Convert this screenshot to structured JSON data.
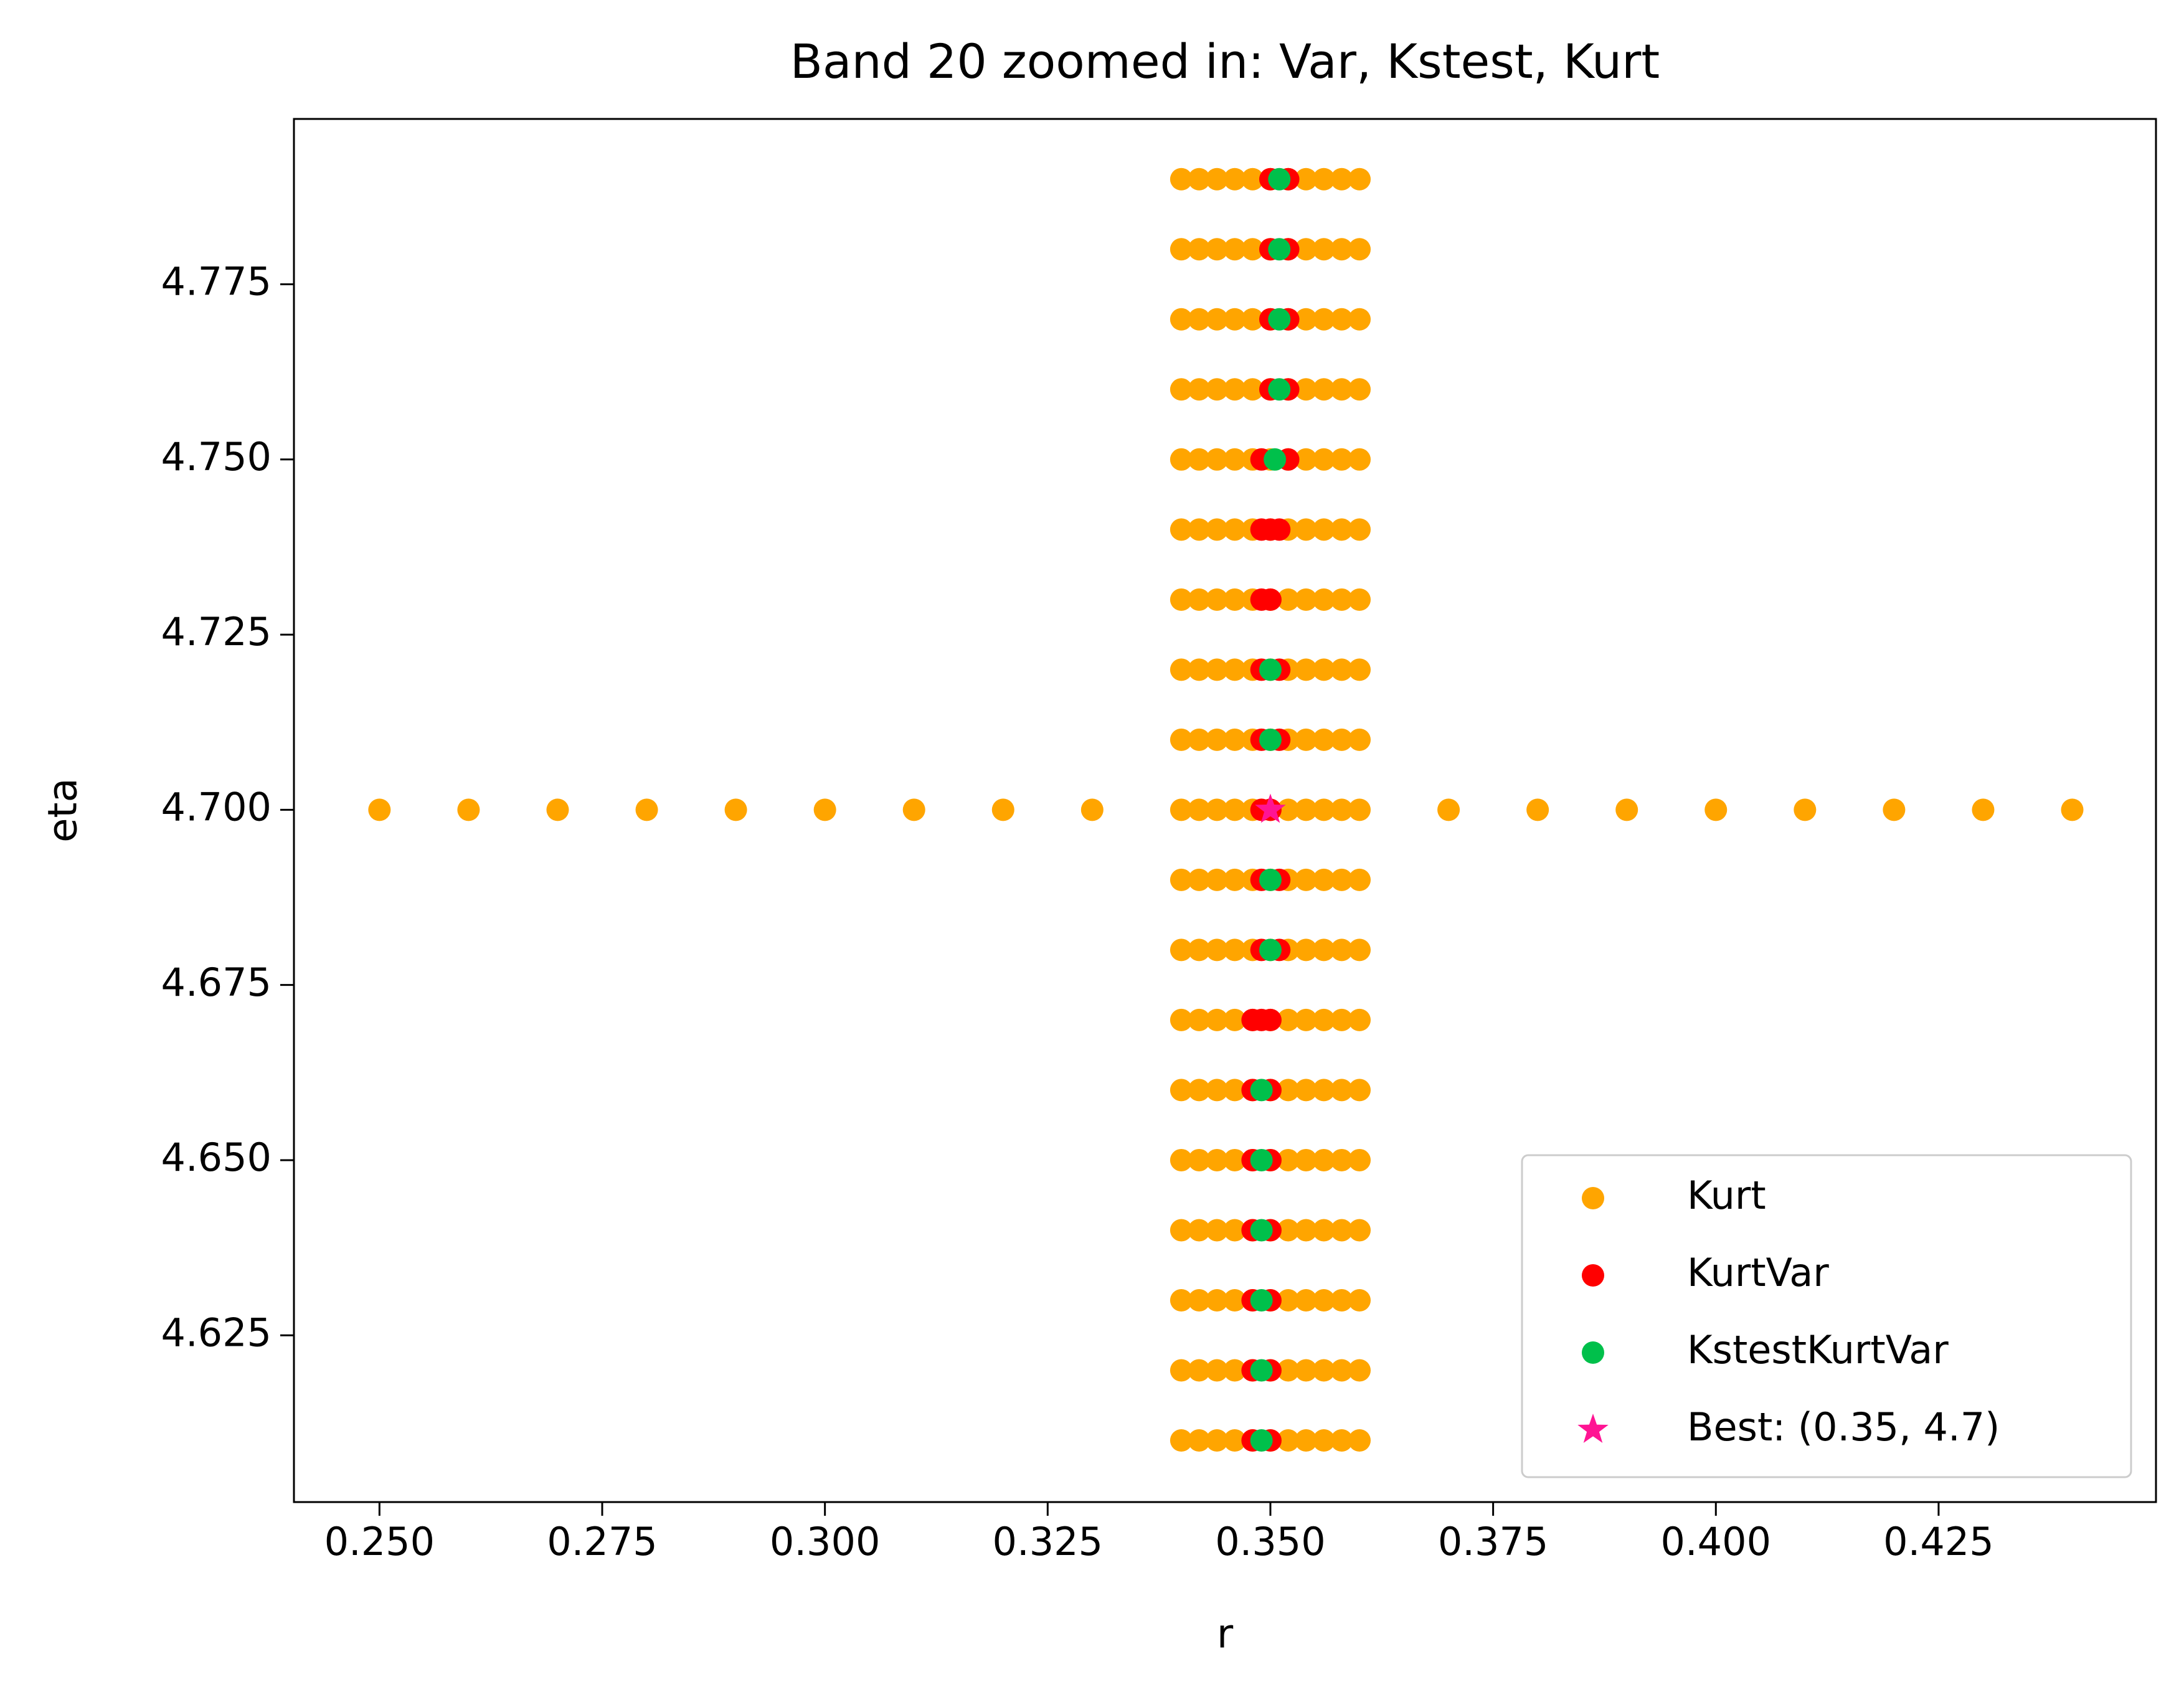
{
  "chart_data": {
    "type": "scatter",
    "title": "Band 20 zoomed in: Var, Kstest, Kurt",
    "x_label": "r",
    "y_label": "eta",
    "xlim": [
      0.2404,
      0.4494
    ],
    "ylim": [
      4.6012,
      4.7986
    ],
    "xticks": [
      {
        "value": 0.25,
        "label": "0.250"
      },
      {
        "value": 0.275,
        "label": "0.275"
      },
      {
        "value": 0.3,
        "label": "0.300"
      },
      {
        "value": 0.325,
        "label": "0.325"
      },
      {
        "value": 0.35,
        "label": "0.350"
      },
      {
        "value": 0.375,
        "label": "0.375"
      },
      {
        "value": 0.4,
        "label": "0.400"
      },
      {
        "value": 0.425,
        "label": "0.425"
      }
    ],
    "yticks": [
      {
        "value": 4.625,
        "label": "4.625"
      },
      {
        "value": 4.65,
        "label": "4.650"
      },
      {
        "value": 4.675,
        "label": "4.675"
      },
      {
        "value": 4.7,
        "label": "4.700"
      },
      {
        "value": 4.725,
        "label": "4.725"
      },
      {
        "value": 4.75,
        "label": "4.750"
      },
      {
        "value": 4.775,
        "label": "4.775"
      }
    ],
    "legend": "lower right",
    "series": [
      {
        "name": "Kurt",
        "color": "#ffa500",
        "marker": "o",
        "x": [
          0.34,
          0.342,
          0.344,
          0.346,
          0.348,
          0.35,
          0.352,
          0.354,
          0.356,
          0.358,
          0.36,
          0.34,
          0.342,
          0.344,
          0.346,
          0.348,
          0.35,
          0.352,
          0.354,
          0.356,
          0.358,
          0.36,
          0.34,
          0.342,
          0.344,
          0.346,
          0.348,
          0.35,
          0.352,
          0.354,
          0.356,
          0.358,
          0.36,
          0.34,
          0.342,
          0.344,
          0.346,
          0.348,
          0.35,
          0.352,
          0.354,
          0.356,
          0.358,
          0.36,
          0.34,
          0.342,
          0.344,
          0.346,
          0.348,
          0.35,
          0.352,
          0.354,
          0.356,
          0.358,
          0.36,
          0.34,
          0.342,
          0.344,
          0.346,
          0.348,
          0.35,
          0.352,
          0.354,
          0.356,
          0.358,
          0.36,
          0.34,
          0.342,
          0.344,
          0.346,
          0.348,
          0.35,
          0.352,
          0.354,
          0.356,
          0.358,
          0.36,
          0.34,
          0.342,
          0.344,
          0.346,
          0.348,
          0.35,
          0.352,
          0.354,
          0.356,
          0.358,
          0.36,
          0.34,
          0.342,
          0.344,
          0.346,
          0.348,
          0.35,
          0.352,
          0.354,
          0.356,
          0.358,
          0.36,
          0.34,
          0.342,
          0.344,
          0.346,
          0.348,
          0.35,
          0.352,
          0.354,
          0.356,
          0.358,
          0.36,
          0.34,
          0.342,
          0.344,
          0.346,
          0.348,
          0.35,
          0.352,
          0.354,
          0.356,
          0.358,
          0.36,
          0.34,
          0.342,
          0.344,
          0.346,
          0.348,
          0.35,
          0.352,
          0.354,
          0.356,
          0.358,
          0.36,
          0.34,
          0.342,
          0.344,
          0.346,
          0.348,
          0.35,
          0.352,
          0.354,
          0.356,
          0.358,
          0.36,
          0.34,
          0.342,
          0.344,
          0.346,
          0.348,
          0.35,
          0.352,
          0.354,
          0.356,
          0.358,
          0.36,
          0.34,
          0.342,
          0.344,
          0.346,
          0.348,
          0.35,
          0.352,
          0.354,
          0.356,
          0.358,
          0.36,
          0.34,
          0.342,
          0.344,
          0.346,
          0.348,
          0.35,
          0.352,
          0.354,
          0.356,
          0.358,
          0.36,
          0.34,
          0.342,
          0.344,
          0.346,
          0.348,
          0.35,
          0.352,
          0.354,
          0.356,
          0.358,
          0.36,
          0.34,
          0.342,
          0.344,
          0.346,
          0.348,
          0.35,
          0.352,
          0.354,
          0.356,
          0.358,
          0.36,
          0.34,
          0.342,
          0.344,
          0.346,
          0.348,
          0.35,
          0.352,
          0.354,
          0.356,
          0.358,
          0.36,
          0.25,
          0.26,
          0.27,
          0.28,
          0.29,
          0.3,
          0.31,
          0.32,
          0.33,
          0.37,
          0.38,
          0.39,
          0.4,
          0.41,
          0.42,
          0.43,
          0.44
        ],
        "y": [
          4.61,
          4.61,
          4.61,
          4.61,
          4.61,
          4.61,
          4.61,
          4.61,
          4.61,
          4.61,
          4.61,
          4.62,
          4.62,
          4.62,
          4.62,
          4.62,
          4.62,
          4.62,
          4.62,
          4.62,
          4.62,
          4.62,
          4.63,
          4.63,
          4.63,
          4.63,
          4.63,
          4.63,
          4.63,
          4.63,
          4.63,
          4.63,
          4.63,
          4.64,
          4.64,
          4.64,
          4.64,
          4.64,
          4.64,
          4.64,
          4.64,
          4.64,
          4.64,
          4.64,
          4.65,
          4.65,
          4.65,
          4.65,
          4.65,
          4.65,
          4.65,
          4.65,
          4.65,
          4.65,
          4.65,
          4.66,
          4.66,
          4.66,
          4.66,
          4.66,
          4.66,
          4.66,
          4.66,
          4.66,
          4.66,
          4.66,
          4.67,
          4.67,
          4.67,
          4.67,
          4.67,
          4.67,
          4.67,
          4.67,
          4.67,
          4.67,
          4.67,
          4.68,
          4.68,
          4.68,
          4.68,
          4.68,
          4.68,
          4.68,
          4.68,
          4.68,
          4.68,
          4.68,
          4.69,
          4.69,
          4.69,
          4.69,
          4.69,
          4.69,
          4.69,
          4.69,
          4.69,
          4.69,
          4.69,
          4.7,
          4.7,
          4.7,
          4.7,
          4.7,
          4.7,
          4.7,
          4.7,
          4.7,
          4.7,
          4.7,
          4.71,
          4.71,
          4.71,
          4.71,
          4.71,
          4.71,
          4.71,
          4.71,
          4.71,
          4.71,
          4.71,
          4.72,
          4.72,
          4.72,
          4.72,
          4.72,
          4.72,
          4.72,
          4.72,
          4.72,
          4.72,
          4.72,
          4.73,
          4.73,
          4.73,
          4.73,
          4.73,
          4.73,
          4.73,
          4.73,
          4.73,
          4.73,
          4.73,
          4.74,
          4.74,
          4.74,
          4.74,
          4.74,
          4.74,
          4.74,
          4.74,
          4.74,
          4.74,
          4.74,
          4.75,
          4.75,
          4.75,
          4.75,
          4.75,
          4.75,
          4.75,
          4.75,
          4.75,
          4.75,
          4.75,
          4.76,
          4.76,
          4.76,
          4.76,
          4.76,
          4.76,
          4.76,
          4.76,
          4.76,
          4.76,
          4.76,
          4.77,
          4.77,
          4.77,
          4.77,
          4.77,
          4.77,
          4.77,
          4.77,
          4.77,
          4.77,
          4.77,
          4.78,
          4.78,
          4.78,
          4.78,
          4.78,
          4.78,
          4.78,
          4.78,
          4.78,
          4.78,
          4.78,
          4.79,
          4.79,
          4.79,
          4.79,
          4.79,
          4.79,
          4.79,
          4.79,
          4.79,
          4.79,
          4.79,
          4.7,
          4.7,
          4.7,
          4.7,
          4.7,
          4.7,
          4.7,
          4.7,
          4.7,
          4.7,
          4.7,
          4.7,
          4.7,
          4.7,
          4.7,
          4.7,
          4.7
        ]
      },
      {
        "name": "KurtVar",
        "color": "#ff0000",
        "marker": "o",
        "x": [
          0.348,
          0.35,
          0.348,
          0.35,
          0.348,
          0.35,
          0.348,
          0.35,
          0.348,
          0.35,
          0.348,
          0.35,
          0.348,
          0.349,
          0.35,
          0.349,
          0.351,
          0.349,
          0.351,
          0.349,
          0.35,
          0.349,
          0.351,
          0.349,
          0.351,
          0.349,
          0.35,
          0.349,
          0.35,
          0.351,
          0.349,
          0.352,
          0.35,
          0.352,
          0.35,
          0.352,
          0.35,
          0.352,
          0.35,
          0.352
        ],
        "y": [
          4.61,
          4.61,
          4.62,
          4.62,
          4.63,
          4.63,
          4.64,
          4.64,
          4.65,
          4.65,
          4.66,
          4.66,
          4.67,
          4.67,
          4.67,
          4.68,
          4.68,
          4.69,
          4.69,
          4.7,
          4.7,
          4.71,
          4.71,
          4.72,
          4.72,
          4.73,
          4.73,
          4.74,
          4.74,
          4.74,
          4.75,
          4.75,
          4.76,
          4.76,
          4.77,
          4.77,
          4.78,
          4.78,
          4.79,
          4.79
        ]
      },
      {
        "name": "KstestKurtVar",
        "color": "#00c04b",
        "marker": "o",
        "x": [
          0.349,
          0.349,
          0.349,
          0.349,
          0.349,
          0.349,
          0.35,
          0.35,
          0.35,
          0.35,
          0.3505,
          0.351,
          0.351,
          0.351,
          0.351
        ],
        "y": [
          4.61,
          4.62,
          4.63,
          4.64,
          4.65,
          4.66,
          4.68,
          4.69,
          4.71,
          4.72,
          4.75,
          4.76,
          4.77,
          4.78,
          4.79
        ]
      },
      {
        "name": "Best: (0.35, 4.7)",
        "color": "#ff1493",
        "marker": "*",
        "x": [
          0.35
        ],
        "y": [
          4.7
        ]
      }
    ]
  }
}
